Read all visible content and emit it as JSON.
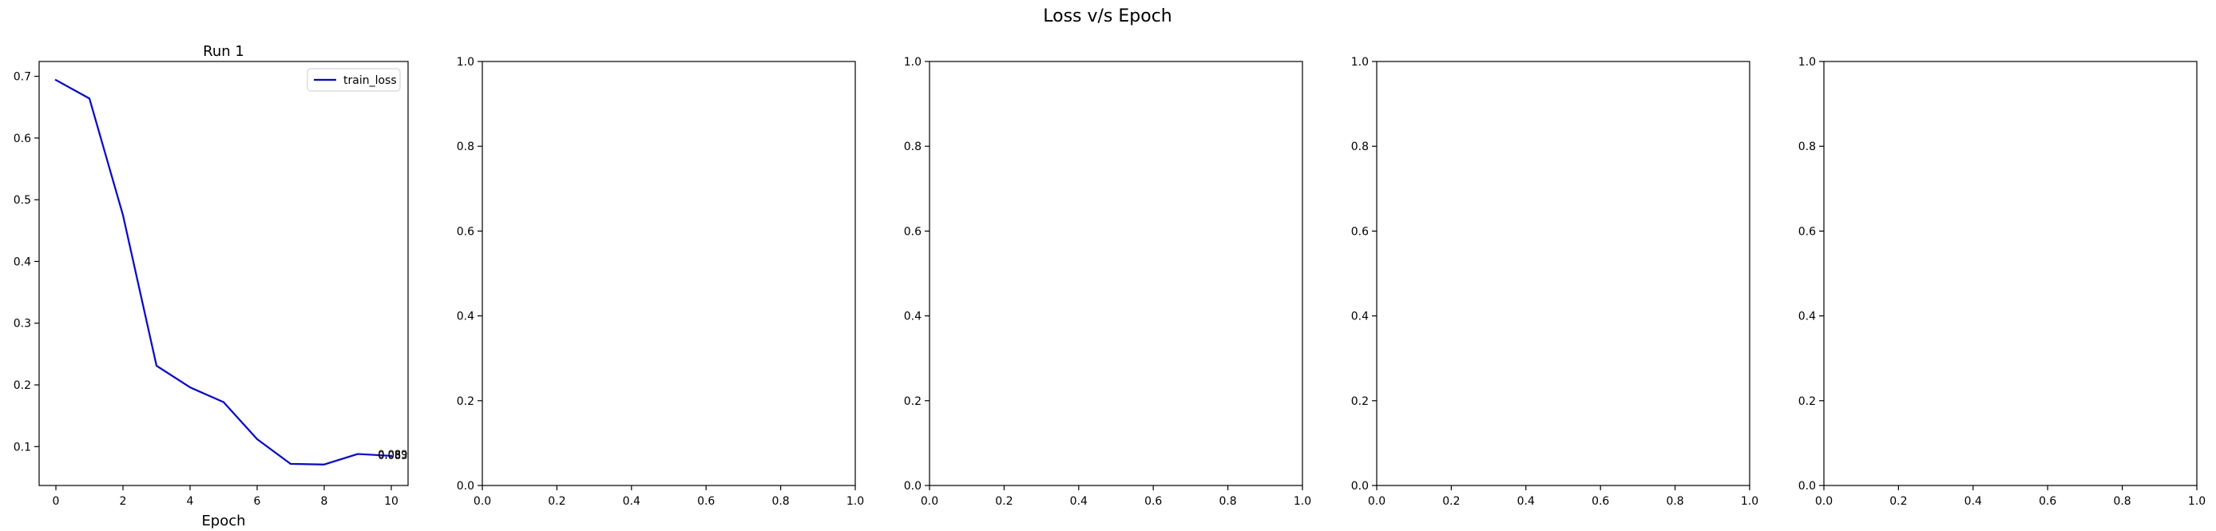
{
  "figure": {
    "suptitle": "Loss v/s Epoch"
  },
  "colors": {
    "train_loss": "#0000ff",
    "axes": "#000000",
    "background": "#ffffff"
  },
  "chart_data": [
    {
      "type": "line",
      "title": "Run 1",
      "xlabel": "Epoch",
      "ylabel": "",
      "xlim": [
        -0.5,
        10.5
      ],
      "ylim": [
        0.037,
        0.724
      ],
      "xticks": [
        0,
        2,
        4,
        6,
        8,
        10
      ],
      "yticks": [
        0.1,
        0.2,
        0.3,
        0.4,
        0.5,
        0.6,
        0.7
      ],
      "grid": false,
      "legend": "upper right",
      "series": [
        {
          "name": "train_loss",
          "x": [
            0,
            1,
            2,
            3,
            4,
            5,
            6,
            7,
            8,
            9,
            10
          ],
          "y": [
            0.694,
            0.664,
            0.475,
            0.231,
            0.196,
            0.172,
            0.112,
            0.072,
            0.071,
            0.088,
            0.085
          ]
        }
      ],
      "annotations": [
        {
          "text": "0.089",
          "x": 9.6,
          "y": 0.088
        },
        {
          "text": "0.083",
          "x": 9.6,
          "y": 0.086
        }
      ]
    },
    {
      "type": "line",
      "title": "",
      "xlabel": "",
      "ylabel": "",
      "xlim": [
        0,
        1
      ],
      "ylim": [
        0,
        1
      ],
      "xticks": [
        0.0,
        0.2,
        0.4,
        0.6,
        0.8,
        1.0
      ],
      "yticks": [
        0.0,
        0.2,
        0.4,
        0.6,
        0.8,
        1.0
      ],
      "grid": false,
      "series": []
    },
    {
      "type": "line",
      "title": "",
      "xlabel": "",
      "ylabel": "",
      "xlim": [
        0,
        1
      ],
      "ylim": [
        0,
        1
      ],
      "xticks": [
        0.0,
        0.2,
        0.4,
        0.6,
        0.8,
        1.0
      ],
      "yticks": [
        0.0,
        0.2,
        0.4,
        0.6,
        0.8,
        1.0
      ],
      "grid": false,
      "series": []
    },
    {
      "type": "line",
      "title": "",
      "xlabel": "",
      "ylabel": "",
      "xlim": [
        0,
        1
      ],
      "ylim": [
        0,
        1
      ],
      "xticks": [
        0.0,
        0.2,
        0.4,
        0.6,
        0.8,
        1.0
      ],
      "yticks": [
        0.0,
        0.2,
        0.4,
        0.6,
        0.8,
        1.0
      ],
      "grid": false,
      "series": []
    },
    {
      "type": "line",
      "title": "",
      "xlabel": "",
      "ylabel": "",
      "xlim": [
        0,
        1
      ],
      "ylim": [
        0,
        1
      ],
      "xticks": [
        0.0,
        0.2,
        0.4,
        0.6,
        0.8,
        1.0
      ],
      "yticks": [
        0.0,
        0.2,
        0.4,
        0.6,
        0.8,
        1.0
      ],
      "grid": false,
      "series": []
    }
  ]
}
